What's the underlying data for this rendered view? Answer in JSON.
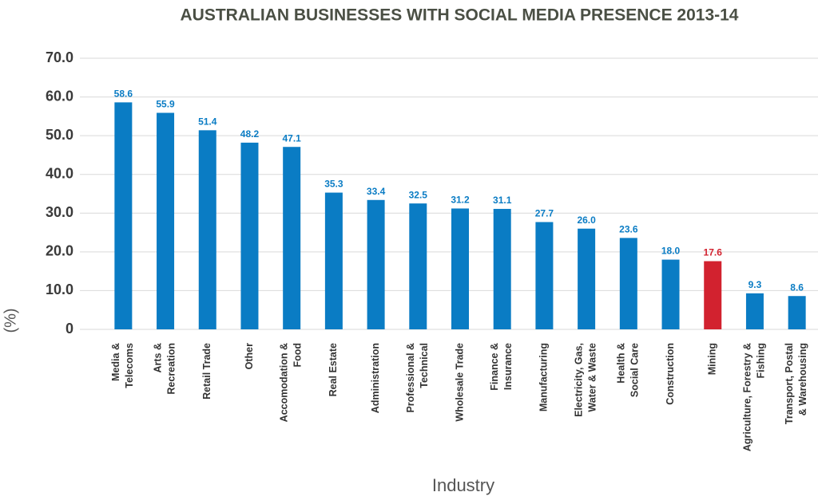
{
  "chart_data": {
    "type": "bar",
    "title": "AUSTRALIAN BUSINESSES WITH SOCIAL MEDIA PRESENCE 2013-14",
    "x_label": "Industry",
    "y_label": "(%)",
    "categories": [
      "Media &\nTelecoms",
      "Arts &\nRecreation",
      "Retail Trade",
      "Other",
      "Accomodation &\nFood",
      "Real Estate",
      "Administration",
      "Professional &\nTechnical",
      "Wholesale Trade",
      "Finance &\nInsurance",
      "Manufacturing",
      "Electricity, Gas,\nWater & Waste",
      "Health &\nSocial Care",
      "Construction",
      "Mining",
      "Agriculture, Forestry &\nFishing",
      "Transport, Postal\n& Warehousing"
    ],
    "values": [
      58.6,
      55.9,
      51.4,
      48.2,
      47.1,
      35.3,
      33.4,
      32.5,
      31.2,
      31.1,
      27.7,
      26.0,
      23.6,
      18.0,
      17.6,
      9.3,
      8.6
    ],
    "value_labels": [
      "58.6",
      "55.9",
      "51.4",
      "48.2",
      "47.1",
      "35.3",
      "33.4",
      "32.5",
      "31.2",
      "31.1",
      "27.7",
      "26.0",
      "23.6",
      "18.0",
      "17.6",
      "9.3",
      "8.6"
    ],
    "colors": [
      "#0a7cc4",
      "#0a7cc4",
      "#0a7cc4",
      "#0a7cc4",
      "#0a7cc4",
      "#0a7cc4",
      "#0a7cc4",
      "#0a7cc4",
      "#0a7cc4",
      "#0a7cc4",
      "#0a7cc4",
      "#0a7cc4",
      "#0a7cc4",
      "#0a7cc4",
      "#d2222f",
      "#0a7cc4",
      "#0a7cc4"
    ],
    "ylim": [
      0,
      70
    ],
    "yticks": [
      0,
      {
        "value": 10,
        "label": "10.0"
      },
      {
        "value": 20,
        "label": "20.0"
      },
      {
        "value": 30,
        "label": "30.0"
      },
      {
        "value": 40,
        "label": "40.0"
      },
      {
        "value": 50,
        "label": "50.0"
      },
      {
        "value": 60,
        "label": "60.0"
      },
      {
        "value": 70,
        "label": "70.0"
      }
    ],
    "grid": true
  }
}
